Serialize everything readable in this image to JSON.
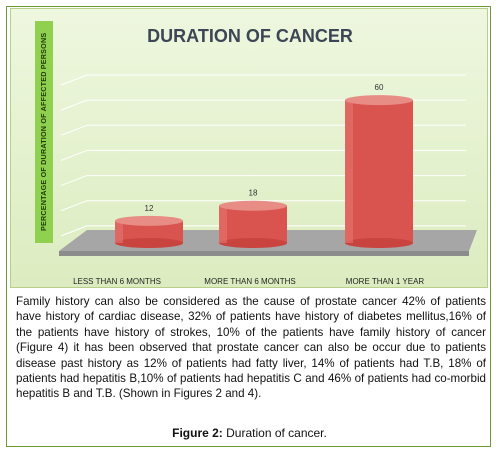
{
  "chart_data": {
    "type": "bar",
    "title": "DURATION OF CANCER",
    "ylabel": "PERCENTAGE OF DURATION OF AFFECTED PERSONS",
    "xlabel": "",
    "categories": [
      "LESS THAN 6 MONTHS",
      "MORE THAN 6 MONTHS",
      "MORE THAN 1 YEAR"
    ],
    "values": [
      12,
      18,
      60
    ],
    "data_labels": [
      "12",
      "18",
      "60"
    ],
    "ylim": [
      0,
      70
    ],
    "grid": true,
    "legend": "none",
    "colors": {
      "bar": "#d9534f",
      "bar_top": "#e88c86",
      "floor": "#a6a6a6",
      "panel": "#e6f2d2",
      "ylabel_box": "#8fd14f"
    }
  },
  "paragraph": "Family history can also be considered as the cause of prostate cancer 42% of patients have history of cardiac disease, 32% of patients have history of diabetes mellitus,16% of the patients have history of strokes, 10% of the patients have family history of cancer (Figure 4) it has been observed that prostate cancer can also be occur due to patients disease past history as 12% of patients had fatty liver, 14% of patients had T.B, 18% of patients had hepatitis B,10% of patients had hepatitis C and 46% of patients had co-morbid hepatitis B and T.B. (Shown in Figures 2 and 4).",
  "caption": {
    "label": "Figure 2:",
    "text": " Duration of cancer."
  }
}
